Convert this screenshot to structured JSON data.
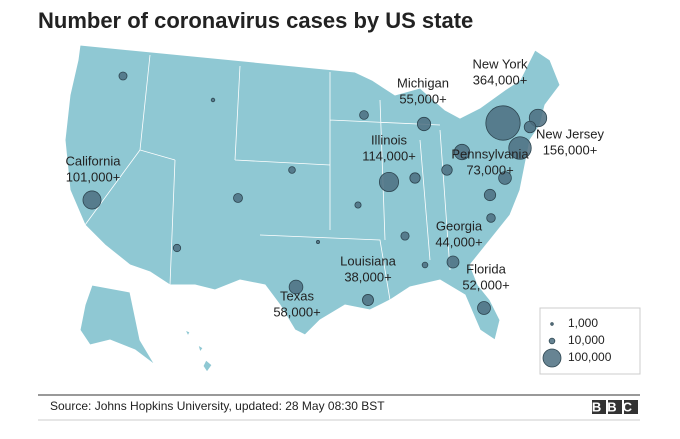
{
  "map_data": {
    "title": "Number of coronavirus cases by US state",
    "states": [
      {
        "name": "New York",
        "value": 364000,
        "label": "364,000+"
      },
      {
        "name": "Michigan",
        "value": 55000,
        "label": "55,000+"
      },
      {
        "name": "New Jersey",
        "value": 156000,
        "label": "156,000+"
      },
      {
        "name": "California",
        "value": 101000,
        "label": "101,000+"
      },
      {
        "name": "Illinois",
        "value": 114000,
        "label": "114,000+"
      },
      {
        "name": "Pennsylvania",
        "value": 73000,
        "label": "73,000+"
      },
      {
        "name": "Georgia",
        "value": 44000,
        "label": "44,000+"
      },
      {
        "name": "Louisiana",
        "value": 38000,
        "label": "38,000+"
      },
      {
        "name": "Florida",
        "value": 52000,
        "label": "52,000+"
      },
      {
        "name": "Texas",
        "value": 58000,
        "label": "58,000+"
      }
    ],
    "other_values": [
      94000,
      41000,
      50000,
      40000,
      20000,
      17000,
      25000,
      24000,
      33000,
      34000,
      21000,
      23000,
      14000,
      12000,
      10000,
      4000,
      3000
    ],
    "legend": [
      {
        "value": 1000,
        "label": "1,000"
      },
      {
        "value": 10000,
        "label": "10,000"
      },
      {
        "value": 100000,
        "label": "100,000"
      }
    ],
    "source": "Source: Johns Hopkins University, updated: 28 May 08:30 BST",
    "logo": "BBC"
  }
}
